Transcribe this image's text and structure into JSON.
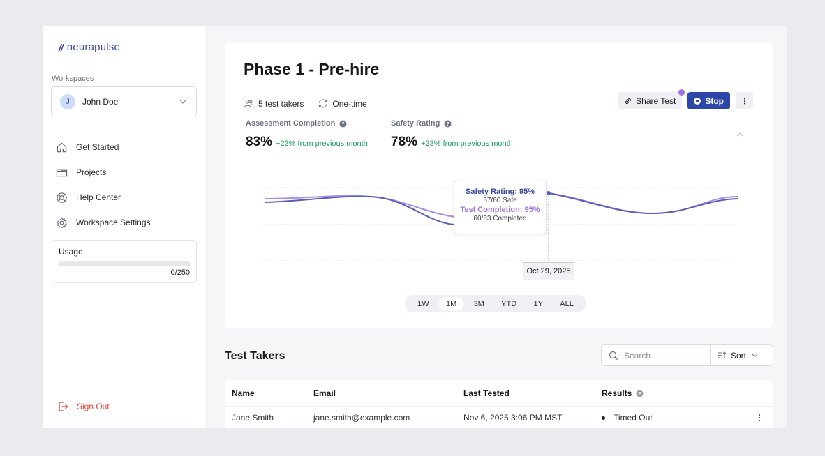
{
  "brand": {
    "name": "neurapulse",
    "mark": "//"
  },
  "sidebar": {
    "workspaces_label": "Workspaces",
    "user": {
      "initial": "J",
      "name": "John Doe"
    },
    "nav": [
      {
        "label": "Get Started",
        "icon": "home-icon"
      },
      {
        "label": "Projects",
        "icon": "folder-icon"
      },
      {
        "label": "Help Center",
        "icon": "lifebuoy-icon"
      },
      {
        "label": "Workspace Settings",
        "icon": "gear-icon"
      }
    ],
    "usage": {
      "label": "Usage",
      "count": "0/250",
      "fraction": 0
    },
    "signout": "Sign Out"
  },
  "test": {
    "title": "Phase 1 - Pre-hire",
    "takers": "5 test takers",
    "frequency": "One-time",
    "share_label": "Share Test",
    "stop_label": "Stop",
    "stats": [
      {
        "label": "Assessment Completion",
        "value": "83%",
        "delta": "+23% from previous month"
      },
      {
        "label": "Safety Rating",
        "value": "78%",
        "delta": "+23% from previous month"
      }
    ],
    "tooltip": {
      "safety_title": "Safety Rating: 95%",
      "safety_sub": "57/60 Safe",
      "completion_title": "Test Completion: 95%",
      "completion_sub": "60/63 Completed"
    },
    "date": "Oct 29, 2025",
    "ranges": [
      "1W",
      "1M",
      "3M",
      "YTD",
      "1Y",
      "ALL"
    ],
    "active_range": "1M",
    "colors": {
      "safety": "#5661b3",
      "completion": "#a98be8",
      "accent": "#2c47a8",
      "positive": "#18a05a"
    }
  },
  "takers_section": {
    "title": "Test Takers",
    "search_placeholder": "Search",
    "sort_label": "Sort",
    "columns": [
      "Name",
      "Email",
      "Last Tested",
      "Results"
    ],
    "rows": [
      {
        "name": "Jane Smith",
        "email": "jane.smith@example.com",
        "last_tested": "Nov 6, 2025 3:06 PM MST",
        "result": "Timed Out"
      }
    ]
  }
}
